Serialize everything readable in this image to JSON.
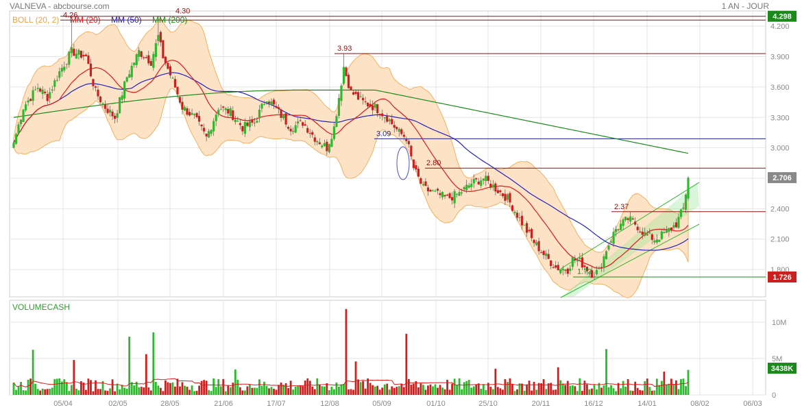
{
  "header": {
    "title": "VALNEVA - abcbourse.com",
    "period": "1 AN - JOUR"
  },
  "legend": [
    {
      "label": "BOLL (20, 2)",
      "color": "#f0a040"
    },
    {
      "label": "MM (20)",
      "color": "#e01818"
    },
    {
      "label": "MM (50)",
      "color": "#2020c0"
    },
    {
      "label": "MM (200)",
      "color": "#1a8a1a"
    }
  ],
  "volume_label": "VOLUMECASH",
  "colors": {
    "up": "#2eb82e",
    "down": "#cc2020",
    "boll_fill": "#fde3c6",
    "boll_line": "#f3b060",
    "grid": "#e4e4e4"
  },
  "chart_data": [
    {
      "type": "candlestick",
      "title": "VALNEVA",
      "x_tick_labels": [
        "05/04",
        "02/05",
        "28/05",
        "21/06",
        "17/07",
        "12/08",
        "05/09",
        "01/10",
        "25/10",
        "20/11",
        "16/12",
        "14/01",
        "08/02",
        "06/03"
      ],
      "y_tick_labels": [
        "4.200",
        "3.900",
        "3.600",
        "3.300",
        "3.000",
        "2.700",
        "2.400",
        "2.100",
        "1.800"
      ],
      "ylim": [
        1.53,
        4.35
      ],
      "grid": true,
      "last_price": "2.706",
      "price_tags": [
        {
          "text": "4.298",
          "value": 4.298,
          "color": "#1a8a1a"
        },
        {
          "text": "2.706",
          "value": 2.706,
          "color": "#888888"
        },
        {
          "text": "1.726",
          "value": 1.726,
          "color": "#cc2020"
        }
      ],
      "annotations": [
        {
          "text": "4.26",
          "value": 4.26
        },
        {
          "text": "4.30",
          "value": 4.3
        },
        {
          "text": "3.93",
          "value": 3.93
        },
        {
          "text": "3.09",
          "value": 3.09
        },
        {
          "text": "2.80",
          "value": 2.8
        },
        {
          "text": "2.37",
          "value": 2.37
        },
        {
          "text": "1.73",
          "value": 1.73
        }
      ],
      "horizontal_levels": [
        {
          "value": 4.298,
          "color": "#8b1010"
        },
        {
          "value": 4.26,
          "color": "#8b1010"
        },
        {
          "value": 3.93,
          "color": "#8b1010"
        },
        {
          "value": 3.09,
          "color": "#20209a"
        },
        {
          "value": 2.8,
          "color": "#8b1010"
        },
        {
          "value": 2.37,
          "color": "#8b1010"
        },
        {
          "value": 1.726,
          "color": "#1a8a1a"
        }
      ],
      "close_anchors": [
        [
          0,
          3.05
        ],
        [
          4,
          3.4
        ],
        [
          10,
          3.6
        ],
        [
          14,
          3.5
        ],
        [
          19,
          3.75
        ],
        [
          24,
          3.95
        ],
        [
          30,
          3.9
        ],
        [
          34,
          3.55
        ],
        [
          38,
          3.4
        ],
        [
          42,
          3.3
        ],
        [
          47,
          3.7
        ],
        [
          52,
          3.95
        ],
        [
          57,
          3.85
        ],
        [
          60,
          4.1
        ],
        [
          62,
          3.9
        ],
        [
          67,
          3.6
        ],
        [
          70,
          3.4
        ],
        [
          75,
          3.3
        ],
        [
          80,
          3.1
        ],
        [
          85,
          3.4
        ],
        [
          90,
          3.35
        ],
        [
          95,
          3.2
        ],
        [
          100,
          3.25
        ],
        [
          105,
          3.5
        ],
        [
          110,
          3.35
        ],
        [
          115,
          3.2
        ],
        [
          120,
          3.25
        ],
        [
          125,
          3.1
        ],
        [
          130,
          3.0
        ],
        [
          133,
          3.2
        ],
        [
          135,
          3.5
        ],
        [
          137,
          3.8
        ],
        [
          140,
          3.55
        ],
        [
          145,
          3.45
        ],
        [
          150,
          3.4
        ],
        [
          155,
          3.3
        ],
        [
          160,
          3.15
        ],
        [
          163,
          3.1
        ],
        [
          166,
          2.8
        ],
        [
          170,
          2.6
        ],
        [
          175,
          2.55
        ],
        [
          180,
          2.5
        ],
        [
          185,
          2.55
        ],
        [
          190,
          2.65
        ],
        [
          195,
          2.7
        ],
        [
          200,
          2.6
        ],
        [
          205,
          2.5
        ],
        [
          210,
          2.3
        ],
        [
          215,
          2.1
        ],
        [
          220,
          1.95
        ],
        [
          225,
          1.82
        ],
        [
          230,
          1.8
        ],
        [
          232,
          1.9
        ],
        [
          235,
          1.88
        ],
        [
          240,
          1.76
        ],
        [
          243,
          1.78
        ],
        [
          246,
          2.0
        ],
        [
          250,
          2.2
        ],
        [
          255,
          2.3
        ],
        [
          258,
          2.25
        ],
        [
          262,
          2.15
        ],
        [
          266,
          2.1
        ],
        [
          270,
          2.15
        ],
        [
          275,
          2.25
        ],
        [
          278,
          2.4
        ],
        [
          280,
          2.706
        ]
      ]
    },
    {
      "type": "bar",
      "title": "VOLUMECASH",
      "y_tick_labels": [
        "10M",
        "5M",
        "0"
      ],
      "ylim": [
        0,
        13
      ],
      "last_value": "3438K",
      "base_volume_millions": 2.0,
      "volume_spikes": [
        [
          8,
          6.2
        ],
        [
          25,
          4.8
        ],
        [
          48,
          8.0
        ],
        [
          55,
          5.6
        ],
        [
          58,
          8.6
        ],
        [
          92,
          3.5
        ],
        [
          138,
          11.8
        ],
        [
          142,
          4.6
        ],
        [
          163,
          8.4
        ],
        [
          200,
          3.6
        ],
        [
          226,
          3.8
        ],
        [
          246,
          6.3
        ],
        [
          270,
          3.2
        ],
        [
          280,
          3.438
        ]
      ]
    }
  ]
}
